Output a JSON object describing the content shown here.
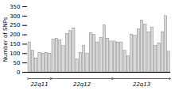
{
  "chart_data": {
    "type": "bar",
    "ylabel": "Number of SNPs",
    "categories": [
      null,
      null,
      null,
      null,
      null,
      null,
      null,
      null,
      null,
      null,
      null,
      null,
      null,
      null,
      null,
      null,
      null,
      null,
      null,
      null,
      null,
      null,
      null,
      null,
      null,
      null,
      null,
      null,
      null,
      null,
      null,
      null,
      null,
      null,
      null,
      null,
      null,
      null,
      null,
      null,
      null,
      null
    ],
    "values": [
      160,
      115,
      75,
      105,
      100,
      105,
      100,
      175,
      180,
      170,
      140,
      205,
      220,
      235,
      70,
      105,
      140,
      100,
      210,
      200,
      160,
      185,
      250,
      180,
      165,
      165,
      160,
      160,
      115,
      85,
      200,
      195,
      230,
      275,
      255,
      215,
      240,
      140,
      155,
      215,
      300,
      110
    ],
    "color": "#d8d8d8",
    "ylim": [
      0,
      350
    ],
    "yticks": [
      0,
      50,
      100,
      150,
      200,
      250,
      300,
      350
    ],
    "grid": false,
    "tick_labels": "y",
    "annotations": [
      {
        "text": "22q11",
        "start": 0,
        "end": 6
      },
      {
        "text": "22q12",
        "start": 7,
        "end": 24
      },
      {
        "text": "22q13",
        "start": 25,
        "end": 41
      }
    ]
  }
}
